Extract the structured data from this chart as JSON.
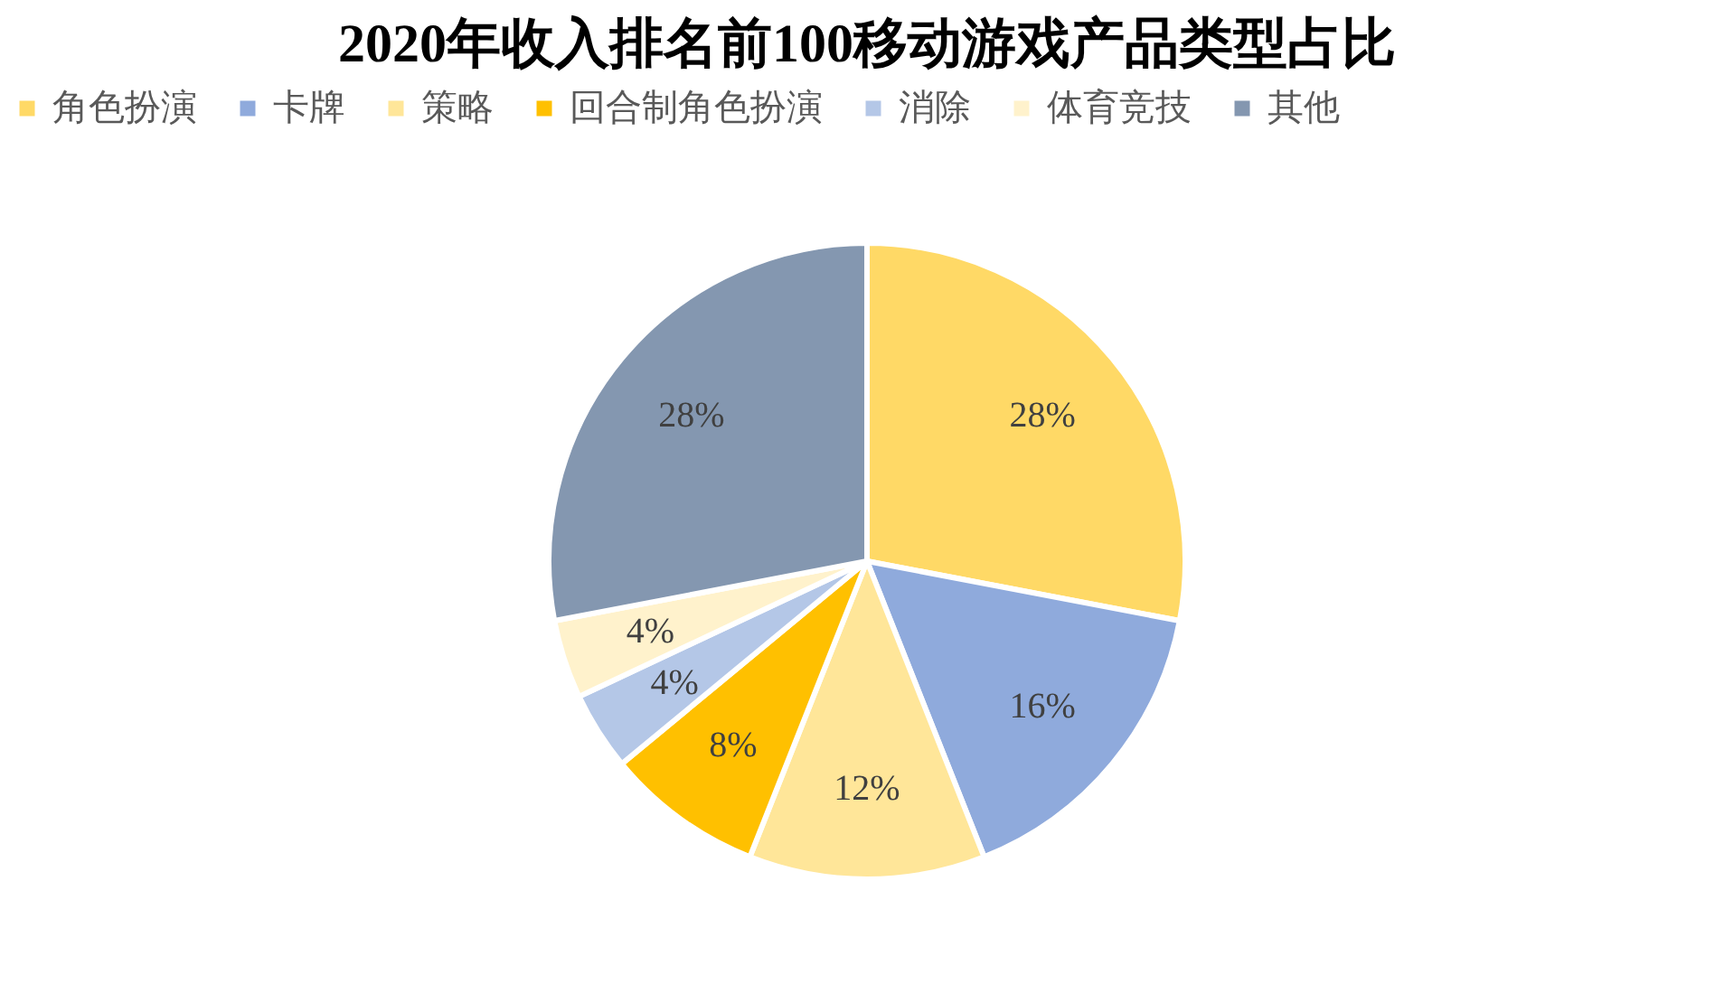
{
  "chart_data": {
    "type": "pie",
    "title": "2020年收入排名前100移动游戏产品类型占比",
    "categories": [
      "角色扮演",
      "卡牌",
      "策略",
      "回合制角色扮演",
      "消除",
      "体育竞技",
      "其他"
    ],
    "values": [
      28,
      16,
      12,
      8,
      4,
      4,
      28
    ],
    "value_labels": [
      "28%",
      "16%",
      "12%",
      "8%",
      "4%",
      "4%",
      "28%"
    ],
    "colors": [
      "#ffd966",
      "#8faadc",
      "#ffe699",
      "#ffc000",
      "#b4c7e7",
      "#fff2cc",
      "#8497b0"
    ],
    "legend": "top"
  }
}
